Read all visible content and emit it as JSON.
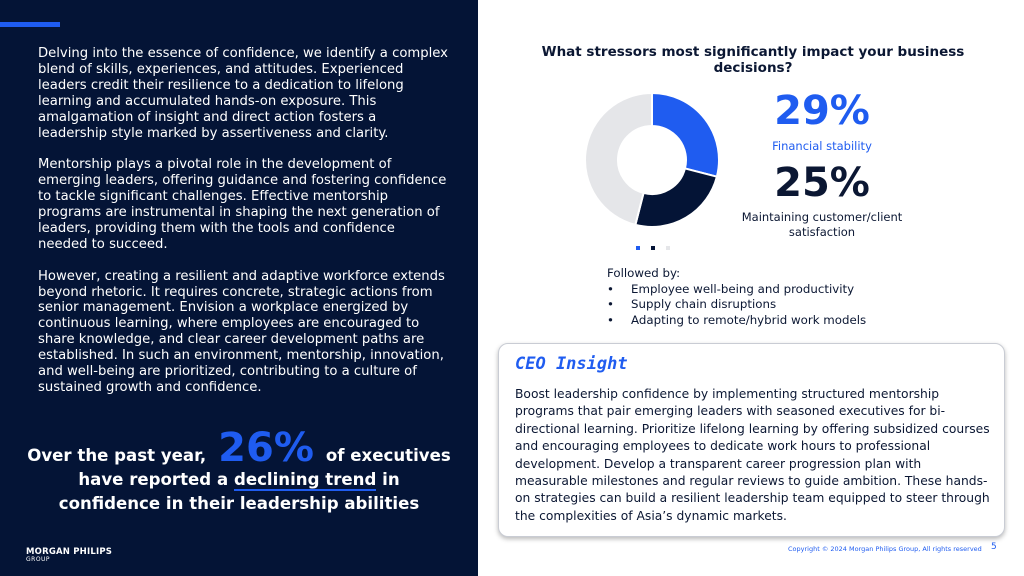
{
  "left": {
    "paragraphs": [
      "Delving into the essence of confidence, we identify a complex blend of skills, experiences, and attitudes. Experienced leaders credit their resilience to a dedication to lifelong learning and accumulated hands-on exposure. This amalgamation of insight and direct action fosters a leadership style marked by assertiveness and clarity.",
      "Mentorship plays a pivotal role in the development of emerging leaders, offering guidance and fostering confidence to tackle significant challenges. Effective mentorship programs are instrumental in shaping the next generation of leaders, providing them with the tools and confidence needed to succeed.",
      "However, creating a resilient and adaptive workforce extends beyond rhetoric. It requires concrete, strategic actions from senior management. Envision a workplace energized by continuous learning, where employees are encouraged to share knowledge, and clear career development paths are established. In such an environment, mentorship, innovation, and well-being are prioritized, contributing to a culture of sustained growth and confidence."
    ],
    "stat": {
      "prefix": "Over the past year,",
      "percent": "26%",
      "suffix": "of executives",
      "line2_before": "have reported a",
      "line2_highlight": "declining trend",
      "line2_after": "in",
      "line3": "confidence in their leadership abilities"
    },
    "logo": {
      "name": "MORGAN PHILIPS",
      "sub": "GROUP"
    }
  },
  "right": {
    "chart_title": "What stressors most significantly impact your business decisions?",
    "callouts": [
      {
        "percent": "29%",
        "label": "Financial stability"
      },
      {
        "percent": "25%",
        "label": "Maintaining customer/client satisfaction"
      }
    ],
    "followed_by": {
      "heading": "Followed by:",
      "items": [
        "Employee well-being and productivity",
        "Supply chain disruptions",
        "Adapting to remote/hybrid work models"
      ]
    },
    "insight": {
      "title": "CEO Insight",
      "text": "Boost leadership confidence by implementing structured mentorship programs that pair emerging leaders with seasoned executives for bi-directional learning. Prioritize lifelong learning by offering subsidized courses and encouraging employees to dedicate work hours to professional development. Develop a transparent career progression plan with measurable milestones and regular reviews to guide ambition. These hands-on strategies can build a resilient leadership team equipped to steer through the complexities of Asia’s dynamic markets."
    },
    "copyright": "Copyright © 2024 Morgan Philips Group, All rights reserved",
    "page_number": "5"
  },
  "chart_data": {
    "type": "pie",
    "categories": [
      "Financial stability",
      "Maintaining customer/client satisfaction",
      ""
    ],
    "values": [
      29,
      25,
      46
    ],
    "colors": [
      "#1f5cf0",
      "#041436",
      "#e5e6e9"
    ]
  }
}
